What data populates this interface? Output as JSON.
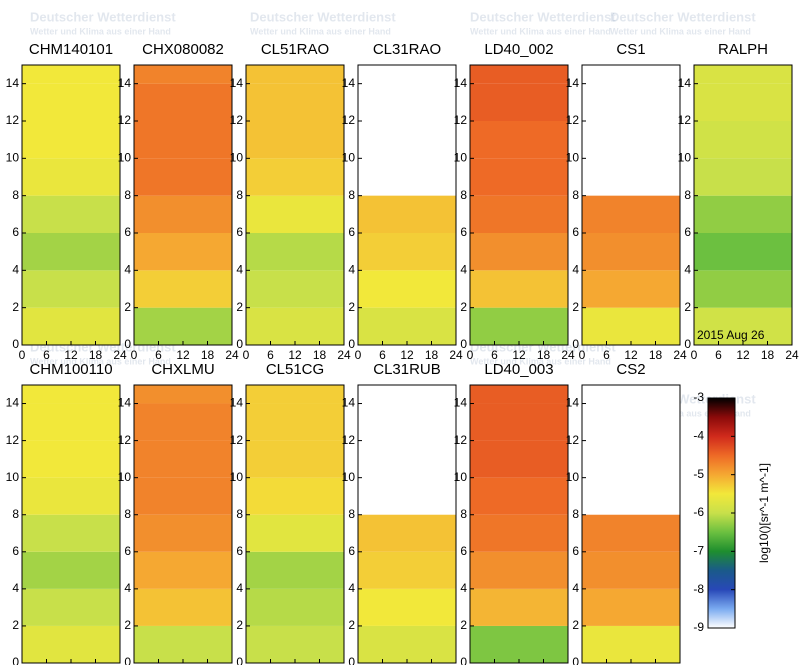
{
  "chart_data": {
    "type": "heatmap",
    "watermark": {
      "title": "Deutscher Wetterdienst",
      "subtitle": "Wetter und Klima aus einer Hand"
    },
    "annotation": "2015 Aug 26",
    "xlim": [
      0,
      24
    ],
    "xticks": [
      0,
      6,
      12,
      18,
      24
    ],
    "ylim": [
      0,
      15
    ],
    "yticks": [
      0,
      2,
      4,
      6,
      8,
      10,
      12,
      14
    ],
    "height_bins": [
      0,
      2,
      4,
      6,
      8,
      10,
      12,
      14,
      15
    ],
    "panels": [
      {
        "title": "CHM140101",
        "values": [
          -5.7,
          -6.0,
          -6.2,
          -6.0,
          -5.6,
          -5.5,
          -5.5,
          -5.5
        ]
      },
      {
        "title": "CHX080082",
        "values": [
          -6.2,
          -5.3,
          -5.0,
          -4.8,
          -4.6,
          -4.6,
          -4.6,
          -4.7
        ]
      },
      {
        "title": "CL51RAO",
        "values": [
          -5.8,
          -6.0,
          -6.1,
          -5.6,
          -5.3,
          -5.2,
          -5.2,
          -5.2
        ]
      },
      {
        "title": "CL31RAO",
        "values": [
          -5.8,
          -5.5,
          -5.3,
          -5.2,
          null,
          null,
          null,
          null
        ]
      },
      {
        "title": "LD40_002",
        "values": [
          -6.3,
          -5.2,
          -4.8,
          -4.6,
          -4.5,
          -4.5,
          -4.4,
          -4.4
        ]
      },
      {
        "title": "CS1",
        "values": [
          -5.6,
          -5.0,
          -4.8,
          -4.7,
          null,
          null,
          null,
          null
        ]
      },
      {
        "title": "RALPH",
        "values": [
          -5.9,
          -6.3,
          -6.5,
          -6.3,
          -6.0,
          -5.9,
          -5.8,
          -5.8
        ]
      },
      {
        "title": "CHM100110",
        "values": [
          -5.7,
          -6.0,
          -6.2,
          -6.0,
          -5.6,
          -5.5,
          -5.5,
          -5.5
        ]
      },
      {
        "title": "CHXLMU",
        "values": [
          -6.0,
          -5.2,
          -5.0,
          -4.8,
          -4.7,
          -4.7,
          -4.7,
          -4.8
        ]
      },
      {
        "title": "CL51CG",
        "values": [
          -6.0,
          -6.1,
          -6.2,
          -5.7,
          -5.4,
          -5.3,
          -5.3,
          -5.3
        ]
      },
      {
        "title": "CL31RUB",
        "values": [
          -5.8,
          -5.5,
          -5.3,
          -5.2,
          null,
          null,
          null,
          null
        ]
      },
      {
        "title": "LD40_003",
        "values": [
          -6.4,
          -5.1,
          -4.8,
          -4.6,
          -4.5,
          -4.4,
          -4.4,
          -4.4
        ]
      },
      {
        "title": "CS2",
        "values": [
          -5.6,
          -5.0,
          -4.8,
          -4.7,
          null,
          null,
          null,
          null
        ]
      }
    ],
    "colorbar": {
      "label": "log10()[sr^-1 m^-1]",
      "clim": [
        -9,
        -3
      ],
      "ticks": [
        -9,
        -8,
        -7,
        -6,
        -5,
        -4,
        -3
      ],
      "colors": [
        "#ffffff",
        "#7aaaf0",
        "#2848b8",
        "#1a5a8a",
        "#1e8e2e",
        "#6cc040",
        "#c8e04a",
        "#f2e83a",
        "#f5a832",
        "#ee6a26",
        "#d02a1c",
        "#8b0a0a",
        "#000000"
      ]
    }
  }
}
